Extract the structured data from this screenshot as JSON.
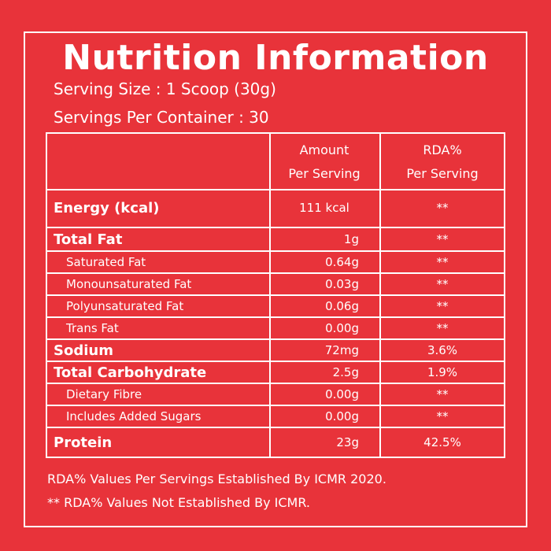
{
  "title": "Nutrition Information",
  "serving_size": "Serving Size : 1 Scoop (30g)",
  "servings_per_container": "Servings Per Container : 30",
  "table": {
    "header": {
      "amount_line1": "Amount",
      "amount_line2": "Per Serving",
      "rda_line1": "RDA%",
      "rda_line2": "Per Serving"
    },
    "rows": [
      {
        "label": "Energy (kcal)",
        "amount": "111 kcal",
        "rda": "**"
      },
      {
        "label": "Total Fat",
        "amount": "1g",
        "rda": "**"
      },
      {
        "label": "Saturated Fat",
        "amount": "0.64g",
        "rda": "**"
      },
      {
        "label": "Monounsaturated Fat",
        "amount": "0.03g",
        "rda": "**"
      },
      {
        "label": "Polyunsaturated Fat",
        "amount": "0.06g",
        "rda": "**"
      },
      {
        "label": "Trans Fat",
        "amount": "0.00g",
        "rda": "**"
      },
      {
        "label": "Sodium",
        "amount": "72mg",
        "rda": "3.6%"
      },
      {
        "label": "Total Carbohydrate",
        "amount": "2.5g",
        "rda": "1.9%"
      },
      {
        "label": "Dietary Fibre",
        "amount": "0.00g",
        "rda": "**"
      },
      {
        "label": "Includes Added Sugars",
        "amount": "0.00g",
        "rda": "**"
      },
      {
        "label": "Protein",
        "amount": "23g",
        "rda": "42.5%"
      }
    ]
  },
  "footnote1": "RDA%  Values Per Servings Established By ICMR 2020.",
  "footnote2": "** RDA%  Values Not Established By ICMR.",
  "colors": {
    "background": "#e8333a",
    "text": "#ffffff"
  }
}
